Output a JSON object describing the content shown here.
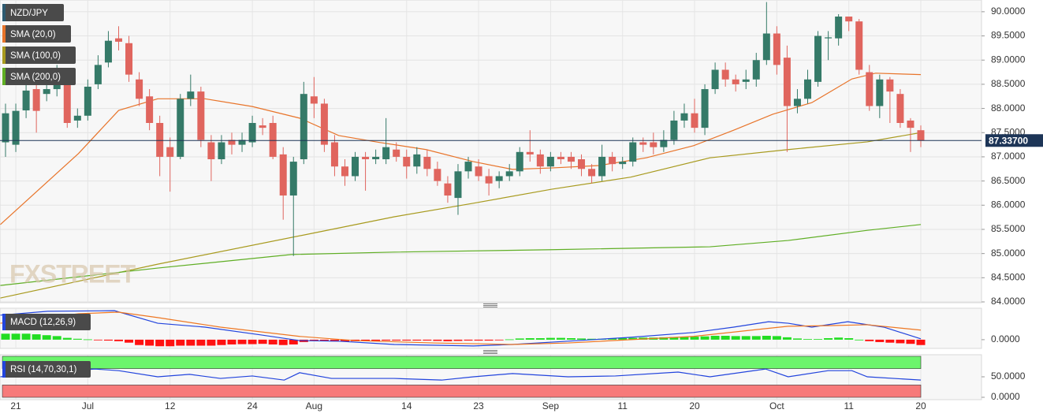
{
  "chart_data": [
    {
      "type": "candlestick",
      "title": "NZD/JPY",
      "title_color": "#2d5a70",
      "watermark": "FXSTREET",
      "categories": [
        null,
        "21",
        null,
        null,
        null,
        null,
        null,
        null,
        "Jul",
        null,
        null,
        null,
        null,
        null,
        null,
        null,
        "12",
        null,
        null,
        null,
        null,
        null,
        null,
        null,
        "24",
        null,
        null,
        null,
        null,
        null,
        "Aug",
        null,
        null,
        null,
        null,
        null,
        null,
        null,
        null,
        "14",
        null,
        null,
        null,
        null,
        null,
        null,
        "23",
        null,
        null,
        null,
        null,
        null,
        null,
        "Sep",
        null,
        null,
        null,
        null,
        null,
        null,
        "11",
        null,
        null,
        null,
        null,
        null,
        null,
        "20",
        null,
        null,
        null,
        null,
        null,
        null,
        null,
        "Oct",
        null,
        null,
        null,
        null,
        null,
        null,
        "11",
        null,
        null,
        null,
        null,
        null,
        null,
        "20"
      ],
      "open": [
        87.3,
        87.25,
        87.96,
        88.4,
        88.3,
        88.4,
        88.6,
        87.75,
        87.85,
        88.5,
        88.95,
        89.45,
        89.35,
        88.6,
        88.25,
        87.7,
        87.2,
        87.0,
        88.2,
        88.35,
        87.3,
        86.95,
        87.35,
        87.25,
        87.3,
        87.65,
        87.7,
        87.05,
        86.2,
        86.95,
        88.25,
        88.1,
        87.3,
        86.8,
        86.6,
        87.0,
        86.95,
        86.95,
        87.15,
        87.0,
        86.8,
        87.0,
        86.75,
        86.45,
        86.15,
        86.7,
        86.8,
        86.6,
        86.5,
        86.6,
        86.7,
        87.1,
        87.05,
        86.8,
        87.0,
        87.0,
        86.95,
        86.75,
        86.6,
        87.0,
        86.85,
        86.9,
        87.3,
        87.3,
        87.2,
        87.35,
        87.75,
        87.9,
        87.6,
        88.4,
        88.8,
        88.6,
        88.55,
        88.6,
        89.0,
        89.55,
        89.05,
        88.05,
        88.2,
        88.55,
        89.45,
        89.45,
        89.9,
        89.8,
        88.75,
        88.05,
        88.6,
        88.3,
        87.75,
        87.55
      ],
      "high": [
        88.1,
        88.1,
        88.6,
        88.5,
        88.7,
        88.9,
        88.75,
        88.0,
        88.6,
        89.1,
        89.6,
        89.7,
        89.5,
        88.75,
        88.4,
        87.85,
        87.4,
        88.3,
        88.7,
        88.45,
        87.45,
        87.45,
        87.5,
        87.5,
        87.85,
        87.8,
        87.85,
        87.2,
        87.0,
        88.55,
        88.65,
        88.2,
        87.45,
        86.95,
        87.1,
        87.1,
        87.15,
        87.8,
        87.3,
        87.15,
        87.2,
        87.15,
        86.9,
        86.6,
        86.85,
        87.0,
        86.95,
        86.75,
        86.7,
        86.85,
        87.2,
        87.55,
        87.15,
        87.1,
        87.1,
        87.1,
        87.05,
        86.85,
        87.25,
        87.1,
        87.0,
        87.4,
        87.4,
        87.5,
        87.55,
        87.95,
        88.1,
        88.2,
        88.5,
        88.95,
        88.95,
        88.7,
        88.8,
        89.15,
        90.2,
        89.7,
        89.3,
        88.4,
        88.8,
        89.6,
        89.6,
        89.95,
        89.9,
        89.85,
        88.9,
        88.7,
        88.65,
        88.4,
        87.8,
        87.65
      ],
      "low": [
        87.0,
        87.1,
        87.8,
        87.5,
        88.15,
        88.25,
        87.6,
        87.6,
        87.75,
        88.4,
        88.85,
        89.2,
        88.55,
        88.05,
        87.55,
        86.6,
        86.28,
        86.95,
        88.05,
        87.2,
        86.5,
        86.85,
        87.05,
        87.1,
        87.2,
        87.45,
        86.95,
        85.7,
        84.95,
        86.85,
        87.8,
        87.1,
        86.6,
        86.4,
        86.5,
        86.3,
        86.85,
        86.85,
        86.9,
        86.55,
        86.65,
        86.6,
        86.4,
        86.05,
        85.8,
        86.55,
        86.5,
        86.2,
        86.35,
        86.5,
        86.6,
        86.9,
        86.65,
        86.7,
        86.85,
        86.75,
        86.6,
        86.45,
        86.5,
        86.7,
        86.75,
        86.8,
        87.1,
        87.05,
        87.1,
        87.25,
        87.6,
        87.5,
        87.45,
        88.3,
        88.45,
        88.35,
        88.4,
        88.45,
        88.9,
        88.7,
        87.1,
        87.9,
        88.1,
        88.45,
        89.0,
        89.3,
        89.6,
        88.7,
        87.95,
        87.8,
        87.7,
        87.6,
        87.1,
        87.2
      ],
      "close": [
        87.9,
        87.95,
        88.37,
        87.95,
        88.4,
        88.6,
        87.7,
        87.85,
        88.45,
        88.9,
        89.4,
        89.38,
        88.7,
        88.2,
        87.7,
        87.0,
        87.0,
        88.2,
        88.35,
        87.35,
        86.95,
        87.3,
        87.25,
        87.35,
        87.7,
        87.6,
        87.0,
        86.2,
        86.9,
        88.3,
        88.1,
        87.25,
        86.8,
        86.6,
        87.0,
        86.95,
        87.0,
        87.2,
        87.0,
        86.8,
        87.05,
        86.75,
        86.5,
        86.2,
        86.7,
        86.9,
        86.6,
        86.45,
        86.6,
        86.7,
        87.1,
        87.05,
        86.8,
        87.0,
        86.95,
        86.9,
        86.75,
        86.6,
        87.0,
        86.85,
        86.9,
        87.3,
        87.25,
        87.2,
        87.35,
        87.75,
        87.9,
        87.6,
        88.4,
        88.8,
        88.6,
        88.5,
        88.6,
        89.0,
        89.55,
        88.9,
        88.05,
        88.2,
        88.6,
        89.5,
        89.47,
        89.9,
        89.8,
        88.8,
        88.05,
        88.6,
        88.35,
        87.7,
        87.6,
        87.337
      ],
      "up_color": "#357a68",
      "down_color": "#e0655e",
      "ylim": [
        84,
        90.21
      ],
      "yticks": [
        {
          "value": 84,
          "label": "84.0000"
        },
        {
          "value": 84.5,
          "label": "84.5000"
        },
        {
          "value": 85,
          "label": "85.0000"
        },
        {
          "value": 85.5,
          "label": "85.5000"
        },
        {
          "value": 86,
          "label": "86.0000"
        },
        {
          "value": 86.5,
          "label": "86.5000"
        },
        {
          "value": 87,
          "label": "87.0000"
        },
        {
          "value": 87.5,
          "label": "87.5000"
        },
        {
          "value": 88,
          "label": "88.0000"
        },
        {
          "value": 88.5,
          "label": "88.5000"
        },
        {
          "value": 89,
          "label": "89.0000"
        },
        {
          "value": 89.5,
          "label": "89.5000"
        },
        {
          "value": 90,
          "label": "90.0000"
        }
      ],
      "grid": true,
      "last_price": {
        "value": 87.337,
        "label": "87.33700",
        "color": "#1d3557"
      },
      "series": [
        {
          "name": "SMA (20,0)",
          "color": "#e8742a",
          "x": [
            -0.5,
            7.1,
            11,
            14.8,
            19.4,
            24,
            28.6,
            32.4,
            36.3,
            40.9,
            45.5,
            49.3,
            53.1,
            57.7,
            62.3,
            66.9,
            70.8,
            74.6,
            78.4,
            82.3,
            84.6,
            89
          ],
          "values": [
            85.6,
            87.07,
            87.96,
            88.2,
            88.2,
            88.04,
            87.8,
            87.44,
            87.3,
            87.15,
            86.9,
            86.74,
            86.77,
            86.82,
            86.98,
            87.23,
            87.55,
            87.88,
            88.12,
            88.61,
            88.73,
            88.7
          ]
        },
        {
          "name": "SMA (100,0)",
          "color": "#a89a1e",
          "x": [
            -0.5,
            14.8,
            30.1,
            37.8,
            45.5,
            53.1,
            60.8,
            68.5,
            76.1,
            83.8,
            89
          ],
          "values": [
            84.08,
            84.78,
            85.43,
            85.76,
            86.04,
            86.33,
            86.58,
            86.98,
            87.15,
            87.31,
            87.5
          ]
        },
        {
          "name": "SMA (200,0)",
          "color": "#5fae24",
          "x": [
            -0.5,
            14.8,
            27.8,
            37.8,
            53.1,
            68.5,
            76.1,
            83.8,
            89
          ],
          "values": [
            84.34,
            84.7,
            84.98,
            85.03,
            85.08,
            85.14,
            85.27,
            85.48,
            85.6
          ]
        }
      ]
    },
    {
      "type": "macd",
      "title": "MACD (12,26,9)",
      "histogram": [
        0.2,
        0.2,
        0.2,
        0.18,
        0.15,
        0.12,
        0.06,
        0.03,
        0.01,
        -0.02,
        -0.03,
        -0.05,
        -0.1,
        -0.18,
        -0.2,
        -0.22,
        -0.22,
        -0.2,
        -0.2,
        -0.2,
        -0.2,
        -0.18,
        -0.16,
        -0.15,
        -0.15,
        -0.14,
        -0.16,
        -0.18,
        -0.16,
        -0.08,
        -0.04,
        -0.05,
        -0.06,
        -0.06,
        -0.05,
        -0.04,
        -0.04,
        -0.03,
        -0.03,
        -0.03,
        -0.03,
        -0.03,
        -0.04,
        -0.05,
        -0.04,
        -0.03,
        -0.03,
        -0.03,
        -0.02,
        0.01,
        0.04,
        0.05,
        0.05,
        0.06,
        0.06,
        0.05,
        0.04,
        0.03,
        0.03,
        0.04,
        0.05,
        0.06,
        0.07,
        0.07,
        0.08,
        0.09,
        0.1,
        0.1,
        0.11,
        0.13,
        0.13,
        0.12,
        0.12,
        0.12,
        0.13,
        0.12,
        0.08,
        0.04,
        0.02,
        0.02,
        0.05,
        0.07,
        0.05,
        0.0,
        -0.05,
        -0.08,
        -0.1,
        -0.12,
        -0.14,
        -0.18
      ],
      "up_color": "#22dd22",
      "down_color": "#ff1111",
      "macd": {
        "color": "#2244dd",
        "x": [
          -0.5,
          4.1,
          10.6,
          14.8,
          19.4,
          24.8,
          28.6,
          32.4,
          37.8,
          45.5,
          49.3,
          54.7,
          60.8,
          66.9,
          70.8,
          74.2,
          76.1,
          78.4,
          81.9,
          85.4,
          89
        ],
        "values": [
          0.82,
          0.95,
          0.97,
          0.55,
          0.42,
          0.16,
          -0.03,
          -0.05,
          -0.16,
          -0.21,
          -0.16,
          -0.05,
          0.08,
          0.24,
          0.42,
          0.6,
          0.55,
          0.42,
          0.6,
          0.42,
          0.03
        ]
      },
      "signal": {
        "color": "#ee7722",
        "x": [
          -0.5,
          7.1,
          11,
          14.8,
          20.9,
          28.6,
          34,
          41.6,
          49.3,
          54.7,
          60.8,
          66.9,
          73.1,
          76.1,
          80,
          83.8,
          89
        ],
        "values": [
          0.55,
          0.87,
          0.92,
          0.74,
          0.42,
          0.11,
          -0.03,
          -0.11,
          -0.16,
          -0.11,
          0.0,
          0.11,
          0.34,
          0.45,
          0.47,
          0.5,
          0.32
        ]
      },
      "ylim": [
        -0.24,
        1.0
      ],
      "yticks": [
        {
          "value": 0,
          "label": "0.0000"
        }
      ]
    },
    {
      "type": "rsi",
      "title": "RSI (14,70,30,1)",
      "line": {
        "color": "#2244dd",
        "x": [
          -0.5,
          4.1,
          8.7,
          11,
          14.8,
          17.9,
          20.9,
          24,
          27.1,
          28.6,
          31.7,
          37.8,
          42.4,
          45.5,
          49.3,
          54.7,
          59.3,
          65.4,
          68.5,
          73.9,
          76.1,
          80,
          82.3,
          83.8,
          89
        ],
        "values": [
          50,
          61.5,
          69,
          65,
          50,
          56,
          46,
          52,
          42,
          60,
          46,
          46,
          42,
          50,
          58,
          50,
          52,
          61.5,
          50,
          69,
          50,
          65,
          65,
          50,
          42
        ]
      },
      "bands": [
        {
          "range": [
            70,
            100
          ],
          "color": "#6cf56c"
        },
        {
          "range": [
            0,
            30
          ],
          "color": "#f77a7a"
        }
      ],
      "ylim": [
        0,
        100
      ],
      "yticks": [
        {
          "value": 50,
          "label": "50.0000"
        },
        {
          "value": 0,
          "label": "0.0000"
        }
      ]
    }
  ]
}
